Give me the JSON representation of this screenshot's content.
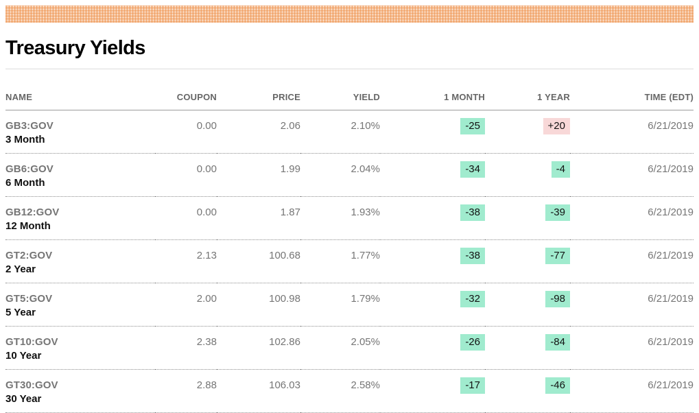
{
  "page": {
    "title": "Treasury Yields"
  },
  "colors": {
    "banner_orange": "#ec8a40",
    "badge_negative_bg": "#a0ebce",
    "badge_positive_bg": "#f8d8d8",
    "muted_text": "#757575"
  },
  "table": {
    "headers": [
      "NAME",
      "COUPON",
      "PRICE",
      "YIELD",
      "1 MONTH",
      "1 YEAR",
      "TIME (EDT)"
    ],
    "rows": [
      {
        "ticker": "GB3:GOV",
        "tenor": "3 Month",
        "coupon": "0.00",
        "price": "2.06",
        "yield": "2.10%",
        "one_month": "-25",
        "one_year": "+20",
        "time": "6/21/2019"
      },
      {
        "ticker": "GB6:GOV",
        "tenor": "6 Month",
        "coupon": "0.00",
        "price": "1.99",
        "yield": "2.04%",
        "one_month": "-34",
        "one_year": "-4",
        "time": "6/21/2019"
      },
      {
        "ticker": "GB12:GOV",
        "tenor": "12 Month",
        "coupon": "0.00",
        "price": "1.87",
        "yield": "1.93%",
        "one_month": "-38",
        "one_year": "-39",
        "time": "6/21/2019"
      },
      {
        "ticker": "GT2:GOV",
        "tenor": "2 Year",
        "coupon": "2.13",
        "price": "100.68",
        "yield": "1.77%",
        "one_month": "-38",
        "one_year": "-77",
        "time": "6/21/2019"
      },
      {
        "ticker": "GT5:GOV",
        "tenor": "5 Year",
        "coupon": "2.00",
        "price": "100.98",
        "yield": "1.79%",
        "one_month": "-32",
        "one_year": "-98",
        "time": "6/21/2019"
      },
      {
        "ticker": "GT10:GOV",
        "tenor": "10 Year",
        "coupon": "2.38",
        "price": "102.86",
        "yield": "2.05%",
        "one_month": "-26",
        "one_year": "-84",
        "time": "6/21/2019"
      },
      {
        "ticker": "GT30:GOV",
        "tenor": "30 Year",
        "coupon": "2.88",
        "price": "106.03",
        "yield": "2.58%",
        "one_month": "-17",
        "one_year": "-46",
        "time": "6/21/2019"
      }
    ]
  }
}
